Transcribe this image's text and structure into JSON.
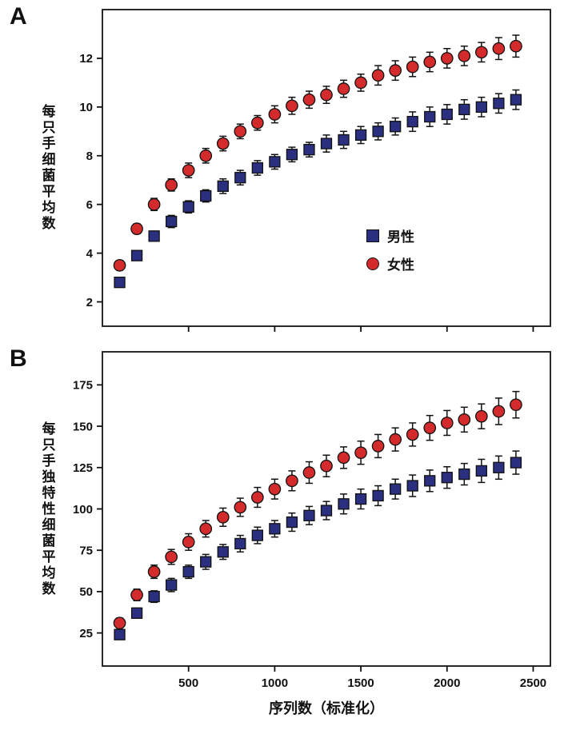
{
  "labels": {
    "panel_a": "A",
    "panel_b": "B"
  },
  "colors": {
    "male": "#2b2f7f",
    "female": "#d32b2b",
    "axis": "#111111"
  },
  "chart_data": [
    {
      "id": "A",
      "type": "scatter",
      "title": "",
      "ylabel": "每只手细菌平均数",
      "xlabel": "",
      "x": [
        100,
        200,
        300,
        400,
        500,
        600,
        700,
        800,
        900,
        1000,
        1100,
        1200,
        1300,
        1400,
        1500,
        1600,
        1700,
        1800,
        1900,
        2000,
        2100,
        2200,
        2300,
        2400
      ],
      "series": [
        {
          "name": "男性",
          "marker": "square",
          "color": "#2b2f7f",
          "values": [
            2.8,
            3.9,
            4.7,
            5.3,
            5.9,
            6.35,
            6.75,
            7.1,
            7.5,
            7.75,
            8.05,
            8.25,
            8.5,
            8.65,
            8.85,
            9.0,
            9.2,
            9.4,
            9.6,
            9.7,
            9.9,
            10.0,
            10.15,
            10.3
          ],
          "errors": [
            0.15,
            0.2,
            0.2,
            0.25,
            0.25,
            0.25,
            0.3,
            0.3,
            0.3,
            0.3,
            0.3,
            0.3,
            0.35,
            0.35,
            0.35,
            0.35,
            0.35,
            0.4,
            0.4,
            0.4,
            0.4,
            0.4,
            0.4,
            0.4
          ]
        },
        {
          "name": "女性",
          "marker": "circle",
          "color": "#d32b2b",
          "values": [
            3.5,
            5.0,
            6.0,
            6.8,
            7.4,
            8.0,
            8.5,
            9.0,
            9.35,
            9.7,
            10.05,
            10.3,
            10.5,
            10.75,
            11.0,
            11.3,
            11.5,
            11.65,
            11.85,
            12.0,
            12.1,
            12.25,
            12.4,
            12.5
          ],
          "errors": [
            0.2,
            0.2,
            0.25,
            0.25,
            0.3,
            0.3,
            0.3,
            0.3,
            0.3,
            0.35,
            0.35,
            0.35,
            0.35,
            0.35,
            0.35,
            0.4,
            0.4,
            0.4,
            0.4,
            0.4,
            0.4,
            0.4,
            0.45,
            0.45
          ]
        }
      ],
      "xlim": [
        0,
        2600
      ],
      "ylim": [
        1,
        14
      ],
      "yticks": [
        2,
        4,
        6,
        8,
        10,
        12
      ],
      "xticks": [
        500,
        1000,
        1500,
        2000,
        2500
      ],
      "show_x_labels": false,
      "grid": false,
      "legend_position": "inside-right-middle"
    },
    {
      "id": "B",
      "type": "scatter",
      "title": "",
      "ylabel": "每只手独特性细菌平均数",
      "xlabel": "序列数（标准化）",
      "x": [
        100,
        200,
        300,
        400,
        500,
        600,
        700,
        800,
        900,
        1000,
        1100,
        1200,
        1300,
        1400,
        1500,
        1600,
        1700,
        1800,
        1900,
        2000,
        2100,
        2200,
        2300,
        2400
      ],
      "series": [
        {
          "name": "男性",
          "marker": "square",
          "color": "#2b2f7f",
          "values": [
            24,
            37,
            47,
            54,
            62,
            68,
            74,
            79,
            84,
            88,
            92,
            96,
            99,
            103,
            106,
            108,
            112,
            114,
            117,
            119,
            121,
            123,
            125,
            128
          ],
          "errors": [
            2.5,
            3,
            3.5,
            4,
            4,
            4.5,
            4.5,
            5,
            5,
            5,
            5.5,
            5.5,
            5.5,
            6,
            6,
            6,
            6,
            6.5,
            6.5,
            6.5,
            6.5,
            7,
            7,
            7
          ]
        },
        {
          "name": "女性",
          "marker": "circle",
          "color": "#d32b2b",
          "values": [
            31,
            48,
            62,
            71,
            80,
            88,
            95,
            101,
            107,
            112,
            117,
            122,
            126,
            131,
            134,
            138,
            142,
            145,
            149,
            152,
            154,
            156,
            159,
            163
          ],
          "errors": [
            3,
            3.5,
            4,
            4.5,
            5,
            5,
            5.5,
            5.5,
            6,
            6,
            6,
            6.5,
            6.5,
            6.5,
            7,
            7,
            7,
            7,
            7.5,
            7.5,
            7.5,
            7.5,
            8,
            8
          ]
        }
      ],
      "xlim": [
        0,
        2600
      ],
      "ylim": [
        5,
        195
      ],
      "yticks": [
        25,
        50,
        75,
        100,
        125,
        150,
        175
      ],
      "xticks": [
        500,
        1000,
        1500,
        2000,
        2500
      ],
      "show_x_labels": true,
      "grid": false,
      "legend_position": "none"
    }
  ]
}
